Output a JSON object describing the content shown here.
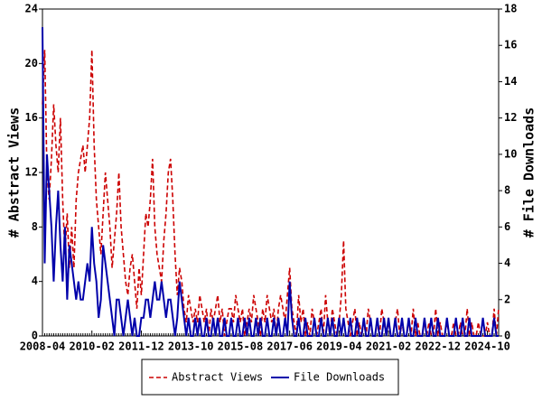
{
  "chart_data": {
    "type": "line",
    "y_label": "# Abstract Views",
    "y2_label": "# File Downloads",
    "categories": [
      "2008-04",
      null,
      null,
      null,
      null,
      null,
      null,
      null,
      null,
      null,
      null,
      null,
      null,
      null,
      null,
      null,
      null,
      null,
      null,
      null,
      null,
      null,
      "2010-02",
      null,
      null,
      null,
      null,
      null,
      null,
      null,
      null,
      null,
      null,
      null,
      null,
      null,
      null,
      null,
      null,
      null,
      null,
      null,
      null,
      null,
      "2011-12",
      null,
      null,
      null,
      null,
      null,
      null,
      null,
      null,
      null,
      null,
      null,
      null,
      null,
      null,
      null,
      null,
      null,
      null,
      null,
      null,
      null,
      "2013-10",
      null,
      null,
      null,
      null,
      null,
      null,
      null,
      null,
      null,
      null,
      null,
      null,
      null,
      null,
      null,
      null,
      null,
      null,
      null,
      null,
      null,
      "2015-08",
      null,
      null,
      null,
      null,
      null,
      null,
      null,
      null,
      null,
      null,
      null,
      null,
      null,
      null,
      null,
      null,
      null,
      null,
      null,
      null,
      null,
      "2017-06",
      null,
      null,
      null,
      null,
      null,
      null,
      null,
      null,
      null,
      null,
      null,
      null,
      null,
      null,
      null,
      null,
      null,
      null,
      null,
      null,
      null,
      "2019-04",
      null,
      null,
      null,
      null,
      null,
      null,
      null,
      null,
      null,
      null,
      null,
      null,
      null,
      null,
      null,
      null,
      null,
      null,
      null,
      null,
      null,
      "2021-02",
      null,
      null,
      null,
      null,
      null,
      null,
      null,
      null,
      null,
      null,
      null,
      null,
      null,
      null,
      null,
      null,
      null,
      null,
      null,
      null,
      null,
      "2022-12",
      null,
      null,
      null,
      null,
      null,
      null,
      null,
      null,
      null,
      null,
      null,
      null,
      null,
      null,
      null,
      null,
      null,
      null,
      null,
      null,
      null,
      "2024-10",
      null,
      null,
      null,
      null,
      null
    ],
    "series": [
      {
        "name": "Abstract Views",
        "color": "#cc0000",
        "dash": true,
        "values": [
          17,
          21,
          12,
          10,
          13,
          17,
          14,
          12,
          16,
          10,
          6,
          9,
          5,
          8,
          5,
          10,
          12,
          13,
          14,
          12,
          14,
          16,
          21,
          14,
          10,
          8,
          6,
          9,
          12,
          10,
          8,
          5,
          7,
          9,
          12,
          8,
          6,
          4,
          3,
          5,
          6,
          4,
          2,
          5,
          3,
          6,
          9,
          8,
          10,
          13,
          8,
          6,
          5,
          4,
          7,
          9,
          12,
          13,
          10,
          6,
          3,
          5,
          4,
          2,
          1,
          3,
          2,
          1,
          2,
          1,
          3,
          2,
          1,
          2,
          0,
          2,
          1,
          2,
          3,
          1,
          2,
          0,
          1,
          2,
          2,
          1,
          3,
          2,
          1,
          2,
          0,
          1,
          2,
          1,
          3,
          2,
          1,
          0,
          2,
          1,
          3,
          2,
          1,
          2,
          0,
          2,
          3,
          2,
          1,
          3,
          5,
          2,
          1,
          0,
          3,
          1,
          2,
          0,
          1,
          0,
          2,
          1,
          0,
          1,
          2,
          0,
          3,
          1,
          0,
          2,
          1,
          0,
          1,
          3,
          7,
          2,
          1,
          0,
          1,
          2,
          0,
          1,
          0,
          1,
          0,
          2,
          1,
          0,
          0,
          1,
          0,
          2,
          1,
          0,
          1,
          0,
          0,
          1,
          2,
          0,
          1,
          0,
          0,
          1,
          0,
          2,
          0,
          1,
          0,
          0,
          1,
          0,
          1,
          0,
          0,
          2,
          0,
          1,
          0,
          0,
          1,
          0,
          0,
          1,
          0,
          0,
          1,
          0,
          0,
          2,
          0,
          1,
          0,
          0,
          1,
          0,
          0,
          0,
          1,
          0,
          0,
          2,
          0,
          2
        ]
      },
      {
        "name": "File Downloads",
        "color": "#0000aa",
        "dash": false,
        "axis": "y2",
        "values": [
          17,
          4,
          10,
          8,
          6,
          3,
          6,
          8,
          5,
          3,
          6,
          2,
          5,
          4,
          3,
          2,
          3,
          2,
          2,
          3,
          4,
          3,
          6,
          4,
          3,
          1,
          2,
          5,
          4,
          3,
          2,
          1,
          0,
          2,
          2,
          1,
          0,
          1,
          2,
          1,
          0,
          1,
          0,
          0,
          1,
          1,
          2,
          2,
          1,
          2,
          3,
          2,
          2,
          3,
          2,
          1,
          2,
          2,
          1,
          0,
          1,
          3,
          2,
          1,
          0,
          1,
          0,
          0,
          1,
          0,
          1,
          0,
          0,
          1,
          0,
          0,
          1,
          0,
          1,
          0,
          0,
          1,
          0,
          0,
          1,
          0,
          0,
          1,
          0,
          0,
          1,
          0,
          1,
          0,
          0,
          1,
          0,
          1,
          0,
          0,
          1,
          0,
          0,
          1,
          0,
          1,
          0,
          0,
          1,
          0,
          3,
          1,
          0,
          0,
          1,
          0,
          0,
          1,
          0,
          0,
          0,
          1,
          0,
          0,
          1,
          0,
          0,
          1,
          0,
          1,
          0,
          0,
          1,
          0,
          1,
          0,
          0,
          1,
          0,
          0,
          1,
          0,
          0,
          1,
          0,
          0,
          1,
          0,
          0,
          1,
          0,
          0,
          1,
          0,
          1,
          0,
          0,
          1,
          0,
          0,
          1,
          0,
          0,
          1,
          0,
          0,
          1,
          0,
          0,
          0,
          1,
          0,
          0,
          1,
          0,
          0,
          1,
          0,
          0,
          0,
          1,
          0,
          0,
          0,
          1,
          0,
          0,
          1,
          0,
          0,
          1,
          0,
          0,
          0,
          0,
          0,
          1,
          0,
          0,
          0,
          0,
          1,
          0,
          0
        ]
      }
    ],
    "ylim": [
      0,
      24
    ],
    "yticks": [
      0,
      4,
      8,
      12,
      16,
      20,
      24
    ],
    "y2lim": [
      0,
      18
    ],
    "y2ticks": [
      0,
      2,
      4,
      6,
      8,
      10,
      12,
      14,
      16,
      18
    ],
    "legend": "bottom"
  }
}
